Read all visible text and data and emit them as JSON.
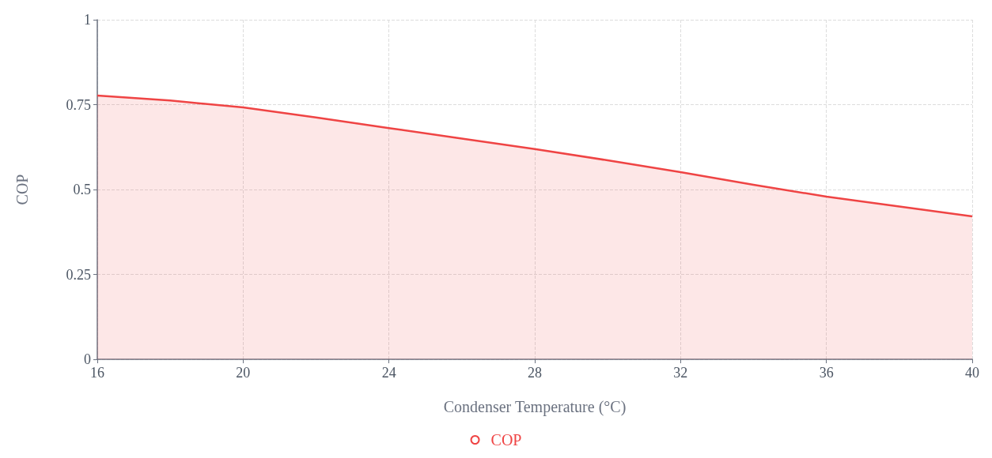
{
  "chart_data": {
    "type": "area",
    "xlabel": "Condenser Temperature (°C)",
    "ylabel": "COP",
    "x": [
      16,
      18,
      20,
      22,
      24,
      26,
      28,
      30,
      32,
      34,
      36,
      38,
      40
    ],
    "series": [
      {
        "name": "COP",
        "color": "#ef4444",
        "values": [
          0.777,
          0.762,
          0.742,
          0.712,
          0.681,
          0.65,
          0.619,
          0.586,
          0.551,
          0.514,
          0.479,
          0.45,
          0.421
        ]
      }
    ],
    "xlim": [
      16,
      40
    ],
    "xticks": [
      16,
      20,
      24,
      28,
      32,
      36,
      40
    ],
    "ylim": [
      0,
      1
    ],
    "yticks": [
      0,
      0.25,
      0.5,
      0.75,
      1
    ],
    "grid": true,
    "legend": "bottom",
    "marker": "none",
    "line_style": "solid"
  }
}
